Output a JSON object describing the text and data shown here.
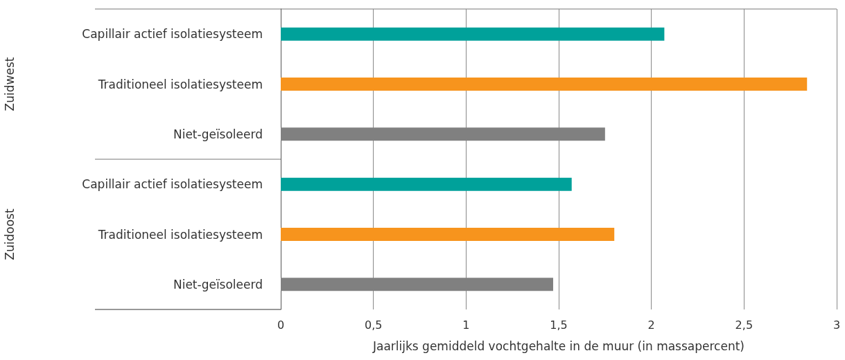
{
  "chart_data": {
    "type": "bar",
    "orientation": "horizontal",
    "categories": [
      "Capillair actief isolatiesysteem",
      "Traditioneel isolatiesysteem",
      "Niet-geïsoleerd",
      "Capillair actief isolatiesysteem",
      "Traditioneel isolatiesysteem",
      "Niet-geïsoleerd"
    ],
    "values": [
      2.07,
      2.84,
      1.75,
      1.57,
      1.8,
      1.47
    ],
    "colors": [
      "#00a19a",
      "#f7941d",
      "#808080",
      "#00a19a",
      "#f7941d",
      "#808080"
    ],
    "xlabel": "Jaarlijks gemiddeld vochtgehalte in de muur (in massapercent)",
    "xlim": [
      0,
      3
    ],
    "xticks": [
      0,
      {
        "value": 0.5,
        "label": "0,5"
      },
      1,
      {
        "value": 1.5,
        "label": "1,5"
      },
      2,
      {
        "value": 2.5,
        "label": "2,5"
      },
      3
    ],
    "grid": "x",
    "annotations": [
      "Zuidwest",
      "Zuidoost"
    ]
  }
}
